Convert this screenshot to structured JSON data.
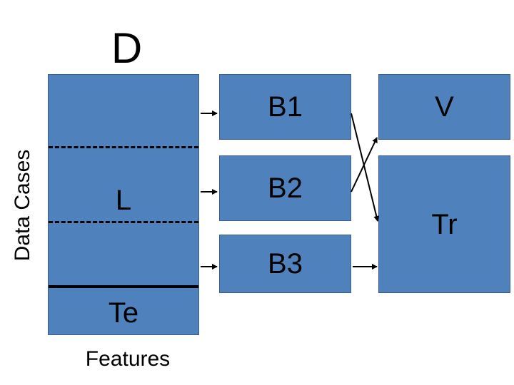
{
  "title": "D",
  "axis": {
    "y_label": "Data Cases",
    "x_label": "Features"
  },
  "dataset": {
    "main_label": "L",
    "test_label": "Te"
  },
  "blocks": [
    "B1",
    "B2",
    "B3"
  ],
  "targets": {
    "validation": "V",
    "training": "Tr"
  },
  "colors": {
    "box_fill": "#4f81bd",
    "box_border": "#3a5f8c",
    "line": "#000000"
  }
}
